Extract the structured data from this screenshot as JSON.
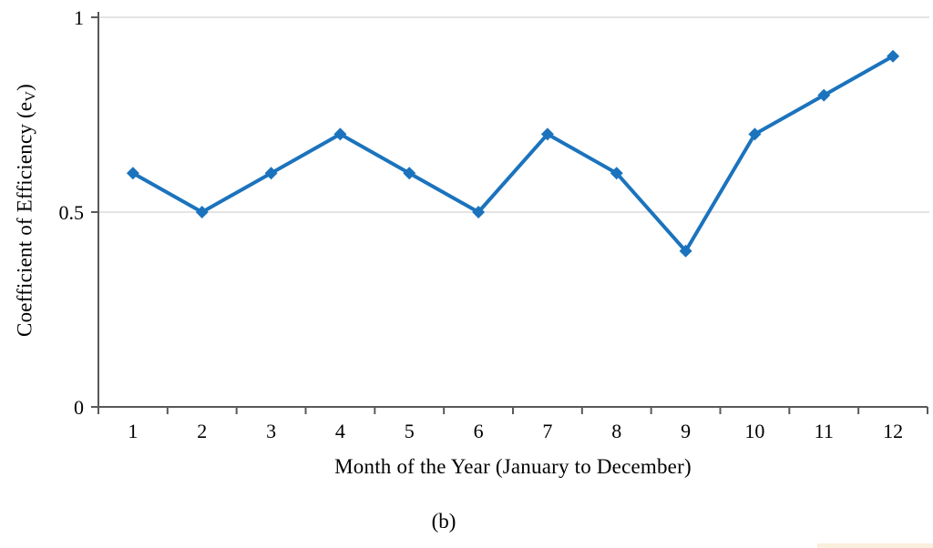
{
  "figure": {
    "caption": "(b)",
    "y_axis_title": {
      "prefix": "Coefficient of Efficiency (e",
      "sub": "V",
      "suffix": ")"
    },
    "x_axis_title": "Month of the Year (January to December)"
  },
  "chart_data": {
    "type": "line",
    "title": "",
    "xlabel": "Month of the Year (January to December)",
    "ylabel": "Coefficient of Efficiency (eV)",
    "categories": [
      "1",
      "2",
      "3",
      "4",
      "5",
      "6",
      "7",
      "8",
      "9",
      "10",
      "11",
      "12"
    ],
    "series": [
      {
        "name": "Coefficient of Efficiency (eV)",
        "values": [
          0.6,
          0.5,
          0.6,
          0.7,
          0.6,
          0.5,
          0.7,
          0.6,
          0.4,
          0.7,
          0.8,
          0.9
        ]
      }
    ],
    "ylim": [
      0,
      1
    ],
    "yticks": [
      0,
      0.5,
      1
    ],
    "ytick_labels": [
      "0",
      "0.5",
      "1"
    ],
    "grid": "horizontal-at-0.5-and-1",
    "legend": "none",
    "marker": "diamond",
    "colors": {
      "line": "#1b73bd",
      "axis": "#595959",
      "gridline": "#c9c9c9",
      "text": "#000000",
      "artifact": "#faeedd"
    }
  }
}
